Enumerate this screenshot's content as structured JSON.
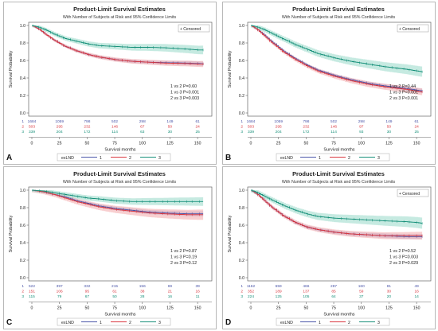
{
  "colors": {
    "g1": "#4a55a8",
    "g2": "#d9363e",
    "g3": "#17907a",
    "band1": "#a9b0e0",
    "band2": "#f2a7aa",
    "band3": "#98d9c9",
    "frame": "#666666",
    "panel_border": "#b8b8b8"
  },
  "chart_data": [
    {
      "panel_letter": "A",
      "type": "line",
      "title": "Product-Limit Survival Estimates",
      "subtitle": "With Number of Subjects at Risk and 95% Confidence Limits",
      "xlabel": "Survival months",
      "ylabel": "Survival Probability",
      "xlim": [
        0,
        160
      ],
      "ylim": [
        0,
        1.0
      ],
      "xticks": [
        "0",
        "25",
        "50",
        "75",
        "100",
        "125",
        "150"
      ],
      "yticks": [
        "0.0",
        "0.2",
        "0.4",
        "0.6",
        "0.8",
        "1.0"
      ],
      "censored_label": "+ Censored",
      "stats": [
        "1 vs 2 P=0.60",
        "1 vs 3 P<0.001",
        "2 vs 3 P=0.003"
      ],
      "legend_title": "exLND",
      "series": [
        {
          "name": "1",
          "x": [
            0,
            6,
            12,
            20,
            30,
            40,
            50,
            60,
            75,
            90,
            105,
            120,
            140,
            150,
            155
          ],
          "y": [
            1.0,
            0.96,
            0.9,
            0.83,
            0.76,
            0.71,
            0.67,
            0.64,
            0.61,
            0.59,
            0.58,
            0.575,
            0.57,
            0.565,
            0.56
          ],
          "ci": 0.025
        },
        {
          "name": "2",
          "x": [
            0,
            6,
            12,
            20,
            30,
            40,
            50,
            60,
            75,
            90,
            105,
            120,
            140,
            150,
            155
          ],
          "y": [
            1.0,
            0.96,
            0.9,
            0.83,
            0.76,
            0.71,
            0.67,
            0.64,
            0.61,
            0.59,
            0.58,
            0.57,
            0.565,
            0.56,
            0.56
          ],
          "ci": 0.035
        },
        {
          "name": "3",
          "x": [
            0,
            6,
            12,
            20,
            30,
            40,
            50,
            60,
            75,
            90,
            105,
            120,
            140,
            150,
            155
          ],
          "y": [
            1.0,
            0.98,
            0.95,
            0.9,
            0.85,
            0.82,
            0.79,
            0.77,
            0.76,
            0.75,
            0.75,
            0.745,
            0.73,
            0.72,
            0.72
          ],
          "ci": 0.05
        }
      ],
      "risk_table": [
        [
          "1684",
          "1059",
          "798",
          "502",
          "298",
          "149",
          "61"
        ],
        [
          "503",
          "295",
          "232",
          "146",
          "67",
          "50",
          "24"
        ],
        [
          "339",
          "204",
          "172",
          "114",
          "63",
          "30",
          "25"
        ]
      ]
    },
    {
      "panel_letter": "B",
      "type": "line",
      "title": "Product-Limit Survival Estimates",
      "subtitle": "With Number of Subjects at Risk and 95% Confidence Limits",
      "xlabel": "Survival months",
      "ylabel": "Survival Probability",
      "xlim": [
        0,
        160
      ],
      "ylim": [
        0,
        1.0
      ],
      "xticks": [
        "0",
        "25",
        "50",
        "75",
        "100",
        "125",
        "150"
      ],
      "yticks": [
        "0.0",
        "0.2",
        "0.4",
        "0.6",
        "0.8",
        "1.0"
      ],
      "censored_label": "+ Censored",
      "stats": [
        "1 vs 2 P=0.44",
        "1 vs 3 P<0.001",
        "2 vs 3 P<0.001"
      ],
      "legend_title": "exLND",
      "series": [
        {
          "name": "1",
          "x": [
            0,
            6,
            12,
            20,
            30,
            40,
            50,
            60,
            75,
            90,
            105,
            120,
            140,
            150,
            155
          ],
          "y": [
            1.0,
            0.95,
            0.89,
            0.8,
            0.7,
            0.62,
            0.55,
            0.49,
            0.43,
            0.38,
            0.34,
            0.31,
            0.28,
            0.26,
            0.25
          ],
          "ci": 0.025
        },
        {
          "name": "2",
          "x": [
            0,
            6,
            12,
            20,
            30,
            40,
            50,
            60,
            75,
            90,
            105,
            120,
            140,
            150,
            155
          ],
          "y": [
            1.0,
            0.95,
            0.88,
            0.79,
            0.69,
            0.61,
            0.54,
            0.48,
            0.42,
            0.37,
            0.33,
            0.3,
            0.27,
            0.25,
            0.24
          ],
          "ci": 0.04
        },
        {
          "name": "3",
          "x": [
            0,
            6,
            12,
            20,
            30,
            40,
            50,
            60,
            75,
            90,
            105,
            120,
            140,
            150,
            155
          ],
          "y": [
            1.0,
            0.98,
            0.95,
            0.9,
            0.84,
            0.78,
            0.73,
            0.68,
            0.63,
            0.59,
            0.56,
            0.53,
            0.5,
            0.48,
            0.47
          ],
          "ci": 0.06
        }
      ],
      "risk_table": [
        [
          "1684",
          "1059",
          "798",
          "502",
          "298",
          "149",
          "61"
        ],
        [
          "503",
          "295",
          "232",
          "146",
          "97",
          "50",
          "24"
        ],
        [
          "339",
          "204",
          "172",
          "114",
          "93",
          "30",
          "25"
        ]
      ]
    },
    {
      "panel_letter": "C",
      "type": "line",
      "title": "Product-Limit Survival Estimates",
      "subtitle": "With Number of Subjects at Risk and 95% Confidence Limits",
      "xlabel": "Survival months",
      "ylabel": "Survival Probability",
      "xlim": [
        0,
        160
      ],
      "ylim": [
        0,
        1.0
      ],
      "xticks": [
        "0",
        "25",
        "50",
        "75",
        "100",
        "125",
        "150"
      ],
      "yticks": [
        "0.0",
        "0.2",
        "0.4",
        "0.6",
        "0.8",
        "1.0"
      ],
      "censored_label": "",
      "stats": [
        "1 vs 2 P=0.87",
        "1 vs 3 P=0.19",
        "2 vs 3 P=0.12"
      ],
      "legend_title": "exLND",
      "series": [
        {
          "name": "1",
          "x": [
            0,
            10,
            20,
            30,
            40,
            50,
            60,
            75,
            90,
            105,
            120,
            140,
            155
          ],
          "y": [
            1.0,
            0.98,
            0.95,
            0.92,
            0.88,
            0.85,
            0.82,
            0.79,
            0.77,
            0.75,
            0.74,
            0.73,
            0.73
          ],
          "ci": 0.03
        },
        {
          "name": "2",
          "x": [
            0,
            10,
            20,
            30,
            40,
            50,
            60,
            75,
            90,
            105,
            120,
            140,
            155
          ],
          "y": [
            1.0,
            0.98,
            0.95,
            0.91,
            0.87,
            0.84,
            0.81,
            0.78,
            0.76,
            0.74,
            0.73,
            0.72,
            0.72
          ],
          "ci": 0.06
        },
        {
          "name": "3",
          "x": [
            0,
            10,
            20,
            30,
            40,
            50,
            60,
            75,
            90,
            105,
            120,
            140,
            155
          ],
          "y": [
            1.0,
            0.99,
            0.97,
            0.95,
            0.93,
            0.91,
            0.9,
            0.88,
            0.87,
            0.87,
            0.87,
            0.87,
            0.87
          ],
          "ci": 0.05
        }
      ],
      "risk_table": [
        [
          "522",
          "397",
          "332",
          "215",
          "156",
          "69",
          "39"
        ],
        [
          "151",
          "106",
          "95",
          "61",
          "38",
          "21",
          "16"
        ],
        [
          "115",
          "79",
          "67",
          "50",
          "28",
          "16",
          "11"
        ]
      ]
    },
    {
      "panel_letter": "D",
      "type": "line",
      "title": "Product-Limit Survival Estimates",
      "subtitle": "With Number of Subjects at Risk and 95% Confidence Limits",
      "xlabel": "Survival months",
      "ylabel": "Survival Probability",
      "xlim": [
        0,
        160
      ],
      "ylim": [
        0,
        1.0
      ],
      "xticks": [
        "0",
        "25",
        "50",
        "75",
        "100",
        "125",
        "150"
      ],
      "yticks": [
        "0.0",
        "0.2",
        "0.4",
        "0.6",
        "0.8",
        "1.0"
      ],
      "censored_label": "+ Censored",
      "stats": [
        "1 vs 2 P=0.52",
        "1 vs 3 P=0.003",
        "2 vs 3 P=0.029"
      ],
      "legend_title": "exLND",
      "series": [
        {
          "name": "1",
          "x": [
            0,
            6,
            12,
            20,
            30,
            40,
            50,
            60,
            75,
            90,
            105,
            120,
            140,
            150,
            155
          ],
          "y": [
            1.0,
            0.95,
            0.88,
            0.79,
            0.7,
            0.63,
            0.58,
            0.55,
            0.52,
            0.5,
            0.49,
            0.48,
            0.47,
            0.47,
            0.47
          ],
          "ci": 0.03
        },
        {
          "name": "2",
          "x": [
            0,
            6,
            12,
            20,
            30,
            40,
            50,
            60,
            75,
            90,
            105,
            120,
            140,
            150,
            155
          ],
          "y": [
            1.0,
            0.95,
            0.88,
            0.79,
            0.7,
            0.63,
            0.58,
            0.55,
            0.52,
            0.5,
            0.49,
            0.48,
            0.48,
            0.48,
            0.48
          ],
          "ci": 0.045
        },
        {
          "name": "3",
          "x": [
            0,
            6,
            12,
            20,
            30,
            40,
            50,
            60,
            75,
            90,
            105,
            120,
            140,
            150,
            155
          ],
          "y": [
            1.0,
            0.97,
            0.93,
            0.88,
            0.82,
            0.77,
            0.73,
            0.7,
            0.68,
            0.67,
            0.66,
            0.65,
            0.64,
            0.63,
            0.62
          ],
          "ci": 0.065
        }
      ],
      "risk_table": [
        [
          "1162",
          "659",
          "466",
          "287",
          "160",
          "81",
          "49"
        ],
        [
          "352",
          "189",
          "137",
          "85",
          "59",
          "30",
          "16"
        ],
        [
          "224",
          "125",
          "105",
          "64",
          "37",
          "20",
          "14"
        ]
      ]
    }
  ]
}
